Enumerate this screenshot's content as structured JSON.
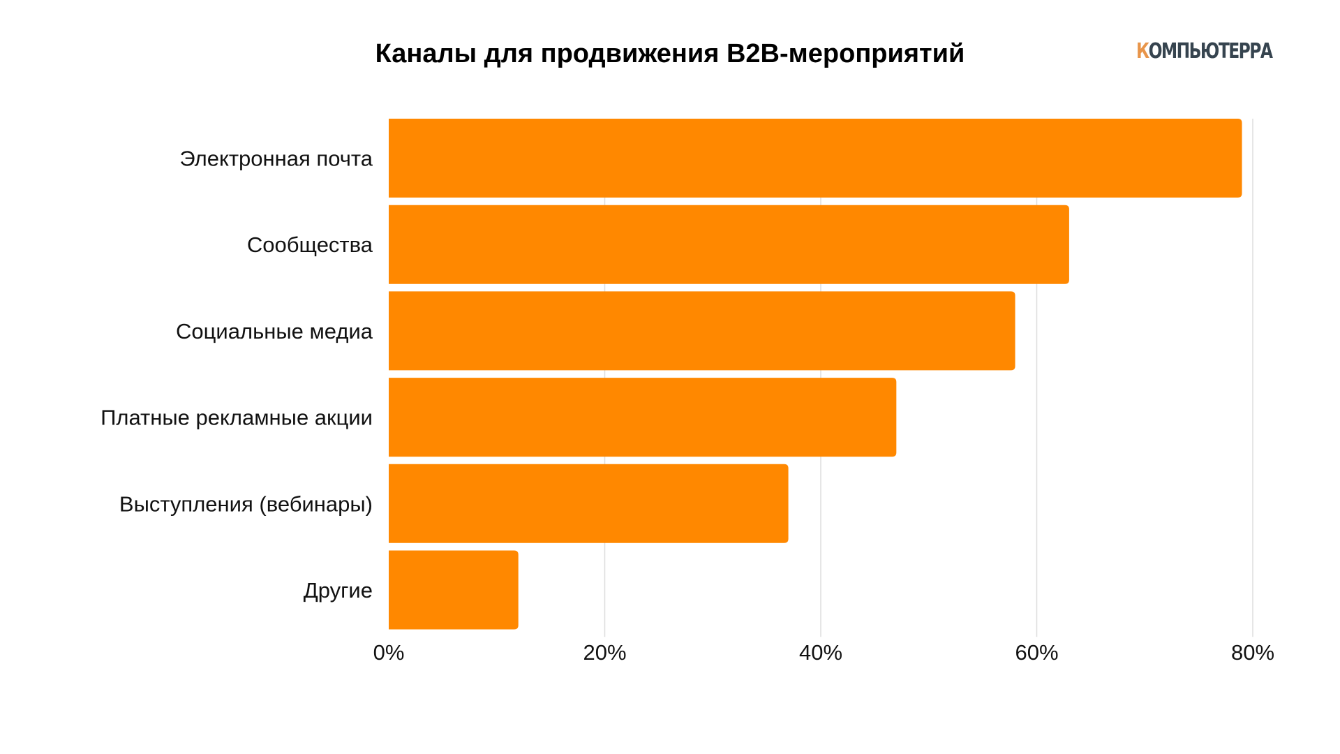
{
  "chart_data": {
    "type": "bar",
    "orientation": "horizontal",
    "title": "Каналы для продвижения B2B-мероприятий",
    "categories": [
      "Электронная почта",
      "Сообщества",
      "Социальные медиа",
      "Платные рекламные акции",
      "Выступления (вебинары)",
      "Другие"
    ],
    "values": [
      79,
      63,
      58,
      47,
      37,
      12
    ],
    "unit": "%",
    "xlim": [
      0,
      80
    ],
    "xticks": [
      "0%",
      "20%",
      "40%",
      "60%",
      "80%"
    ],
    "xtick_values": [
      0,
      20,
      40,
      60,
      80
    ],
    "grid": "vertical",
    "bar_color": "#ff8800",
    "grid_color": "#dddddd"
  },
  "logo": {
    "first_letter": "К",
    "rest": "ОМПЬЮТЕРРА",
    "accent_color": "#e8954a",
    "text_color": "#36444f"
  }
}
